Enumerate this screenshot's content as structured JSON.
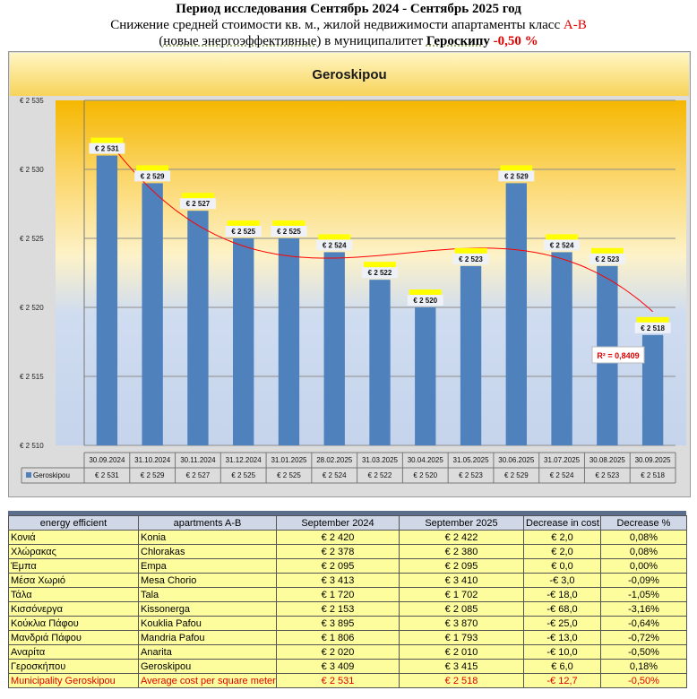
{
  "header": {
    "line1": "Период исследования Сентябрь 2024 - Сентябрь 2025 год",
    "line2_prefix": "Снижение средней стоимости кв. м., жилой недвижимости апартаменты класс ",
    "line2_class": "А-В",
    "line3_paren": "(новые энергоэффективные)",
    "line3_mid": " в муниципалитет ",
    "line3_city": "Героскипу",
    "line3_value": " -0,50 %"
  },
  "chart_data": {
    "type": "bar",
    "title": "Geroskipou",
    "series_name": "Geroskipou",
    "categories": [
      "30.09.2024",
      "31.10.2024",
      "30.11.2024",
      "31.12.2024",
      "31.01.2025",
      "28.02.2025",
      "31.03.2025",
      "30.04.2025",
      "31.05.2025",
      "30.06.2025",
      "31.07.2025",
      "30.08.2025",
      "30.09.2025"
    ],
    "values": [
      2531,
      2529,
      2527,
      2525,
      2525,
      2524,
      2522,
      2520,
      2523,
      2529,
      2524,
      2523,
      2518
    ],
    "value_labels": [
      "€ 2 531",
      "€ 2 529",
      "€ 2 527",
      "€ 2 525",
      "€ 2 525",
      "€ 2 524",
      "€ 2 522",
      "€ 2 520",
      "€ 2 523",
      "€ 2 529",
      "€ 2 524",
      "€ 2 523",
      "€ 2 518"
    ],
    "ylim": [
      2510,
      2535
    ],
    "yticks": [
      2510,
      2515,
      2520,
      2525,
      2530,
      2535
    ],
    "ytick_labels": [
      "€ 2 510",
      "€ 2 515",
      "€ 2 520",
      "€ 2 525",
      "€ 2 530",
      "€ 2 535"
    ],
    "trendline": "polynomial",
    "r_squared_label": "R² = 0,8409",
    "colors": {
      "bar": "#4f81bd",
      "trend": "#ff0000",
      "label_bg": "#ffff00"
    }
  },
  "table": {
    "headers": [
      "energy efficient",
      "apartments A-B",
      "September 2024",
      "September 2025",
      "Decrease in cost",
      "Decrease %"
    ],
    "rows": [
      [
        "Κονιά",
        "Konia",
        "€ 2 420",
        "€ 2 422",
        "€ 2,0",
        "0,08%"
      ],
      [
        "Χλώρακας",
        "Chlorakas",
        "€ 2 378",
        "€ 2 380",
        "€ 2,0",
        "0,08%"
      ],
      [
        "Έμπα",
        "Empa",
        "€ 2 095",
        "€ 2 095",
        "€ 0,0",
        "0,00%"
      ],
      [
        "Μέσα Χωριό",
        "Mesa Chorio",
        "€ 3 413",
        "€ 3 410",
        "-€ 3,0",
        "-0,09%"
      ],
      [
        "Τάλα",
        "Tala",
        "€ 1 720",
        "€ 1 702",
        "-€ 18,0",
        "-1,05%"
      ],
      [
        "Κισσόνεργα",
        "Kissonerga",
        "€ 2 153",
        "€ 2 085",
        "-€ 68,0",
        "-3,16%"
      ],
      [
        "Κούκλια Πάφου",
        "Kouklia Pafou",
        "€ 3 895",
        "€ 3 870",
        "-€ 25,0",
        "-0,64%"
      ],
      [
        "Μανδριά Πάφου",
        "Mandria Pafou",
        "€ 1 806",
        "€ 1 793",
        "-€ 13,0",
        "-0,72%"
      ],
      [
        "Αναρίτα",
        "Anarita",
        "€ 2 020",
        "€ 2 010",
        "-€ 10,0",
        "-0,50%"
      ],
      [
        "Γεροσκήπου",
        "Geroskipou",
        "€ 3 409",
        "€ 3 415",
        "€ 6,0",
        "0,18%"
      ]
    ],
    "total": [
      "Municipality Geroskipou",
      "Average cost per square meter",
      "€ 2 531",
      "€ 2 518",
      "-€ 12,7",
      "-0,50%"
    ]
  }
}
